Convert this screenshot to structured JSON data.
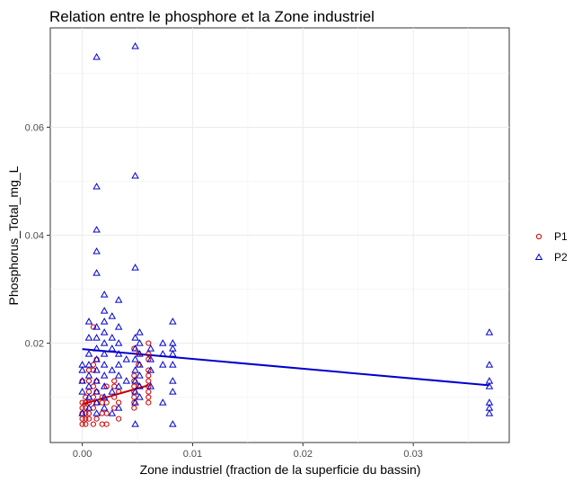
{
  "chart_data": {
    "type": "scatter",
    "title": "Relation entre le phosphore et la Zone industriel",
    "xlabel": "Zone industriel (fraction de la superficie du bassin)",
    "ylabel": "Phosphorus_Total_mg_L",
    "xlim": [
      -0.0029,
      0.0387
    ],
    "ylim": [
      0.0016,
      0.0784
    ],
    "x_ticks": [
      0.0,
      0.01,
      0.02,
      0.03
    ],
    "x_tick_labels": [
      "0.00",
      "0.01",
      "0.02",
      "0.03"
    ],
    "y_ticks": [
      0.02,
      0.04,
      0.06
    ],
    "y_tick_labels": [
      "0.02",
      "0.04",
      "0.06"
    ],
    "grid": true,
    "legend_position": "right",
    "series": [
      {
        "name": "P1",
        "marker": "circle",
        "color": "#cc0000",
        "points": [
          [
            0.0,
            0.005
          ],
          [
            0.0,
            0.006
          ],
          [
            0.0,
            0.007
          ],
          [
            0.0,
            0.008
          ],
          [
            0.0,
            0.009
          ],
          [
            0.0,
            0.013
          ],
          [
            0.0003,
            0.005
          ],
          [
            0.0003,
            0.006
          ],
          [
            0.0003,
            0.007
          ],
          [
            0.0003,
            0.008
          ],
          [
            0.0003,
            0.009
          ],
          [
            0.0003,
            0.01
          ],
          [
            0.0006,
            0.006
          ],
          [
            0.0006,
            0.007
          ],
          [
            0.0006,
            0.009
          ],
          [
            0.0006,
            0.011
          ],
          [
            0.0006,
            0.013
          ],
          [
            0.0006,
            0.015
          ],
          [
            0.001,
            0.005
          ],
          [
            0.001,
            0.008
          ],
          [
            0.001,
            0.01
          ],
          [
            0.001,
            0.012
          ],
          [
            0.001,
            0.015
          ],
          [
            0.001,
            0.016
          ],
          [
            0.001,
            0.023
          ],
          [
            0.0013,
            0.006
          ],
          [
            0.0013,
            0.009
          ],
          [
            0.0013,
            0.011
          ],
          [
            0.0013,
            0.013
          ],
          [
            0.0013,
            0.017
          ],
          [
            0.0018,
            0.005
          ],
          [
            0.0018,
            0.007
          ],
          [
            0.0018,
            0.009
          ],
          [
            0.0018,
            0.01
          ],
          [
            0.0022,
            0.005
          ],
          [
            0.0022,
            0.007
          ],
          [
            0.0022,
            0.009
          ],
          [
            0.0022,
            0.012
          ],
          [
            0.0029,
            0.008
          ],
          [
            0.0029,
            0.01
          ],
          [
            0.0029,
            0.012
          ],
          [
            0.0029,
            0.013
          ],
          [
            0.0033,
            0.006
          ],
          [
            0.0033,
            0.009
          ],
          [
            0.0033,
            0.011
          ],
          [
            0.0047,
            0.008
          ],
          [
            0.0047,
            0.009
          ],
          [
            0.0047,
            0.01
          ],
          [
            0.0047,
            0.011
          ],
          [
            0.0047,
            0.012
          ],
          [
            0.0047,
            0.013
          ],
          [
            0.0047,
            0.014
          ],
          [
            0.0047,
            0.019
          ],
          [
            0.0051,
            0.012
          ],
          [
            0.0051,
            0.016
          ],
          [
            0.0051,
            0.018
          ],
          [
            0.006,
            0.009
          ],
          [
            0.006,
            0.01
          ],
          [
            0.006,
            0.011
          ],
          [
            0.006,
            0.012
          ],
          [
            0.006,
            0.013
          ],
          [
            0.006,
            0.014
          ],
          [
            0.006,
            0.015
          ],
          [
            0.006,
            0.017
          ],
          [
            0.006,
            0.018
          ],
          [
            0.006,
            0.02
          ]
        ],
        "trend": [
          [
            0.0,
            0.0087
          ],
          [
            0.006,
            0.0122
          ]
        ]
      },
      {
        "name": "P2",
        "marker": "triangle",
        "color": "#0000cc",
        "points": [
          [
            0.0,
            0.007
          ],
          [
            0.0,
            0.011
          ],
          [
            0.0,
            0.013
          ],
          [
            0.0,
            0.015
          ],
          [
            0.0,
            0.016
          ],
          [
            0.0006,
            0.008
          ],
          [
            0.0006,
            0.01
          ],
          [
            0.0006,
            0.012
          ],
          [
            0.0006,
            0.014
          ],
          [
            0.0006,
            0.016
          ],
          [
            0.0006,
            0.018
          ],
          [
            0.0006,
            0.021
          ],
          [
            0.0006,
            0.024
          ],
          [
            0.0013,
            0.007
          ],
          [
            0.0013,
            0.009
          ],
          [
            0.0013,
            0.011
          ],
          [
            0.0013,
            0.013
          ],
          [
            0.0013,
            0.015
          ],
          [
            0.0013,
            0.017
          ],
          [
            0.0013,
            0.019
          ],
          [
            0.0013,
            0.021
          ],
          [
            0.0013,
            0.023
          ],
          [
            0.0013,
            0.033
          ],
          [
            0.0013,
            0.037
          ],
          [
            0.0013,
            0.041
          ],
          [
            0.0013,
            0.049
          ],
          [
            0.0013,
            0.073
          ],
          [
            0.002,
            0.008
          ],
          [
            0.002,
            0.01
          ],
          [
            0.002,
            0.012
          ],
          [
            0.002,
            0.014
          ],
          [
            0.002,
            0.016
          ],
          [
            0.002,
            0.018
          ],
          [
            0.002,
            0.02
          ],
          [
            0.002,
            0.022
          ],
          [
            0.002,
            0.024
          ],
          [
            0.002,
            0.026
          ],
          [
            0.002,
            0.029
          ],
          [
            0.0027,
            0.007
          ],
          [
            0.0027,
            0.011
          ],
          [
            0.0027,
            0.015
          ],
          [
            0.0027,
            0.019
          ],
          [
            0.0027,
            0.021
          ],
          [
            0.0027,
            0.025
          ],
          [
            0.0033,
            0.008
          ],
          [
            0.0033,
            0.012
          ],
          [
            0.0033,
            0.014
          ],
          [
            0.0033,
            0.016
          ],
          [
            0.0033,
            0.018
          ],
          [
            0.0033,
            0.02
          ],
          [
            0.0033,
            0.023
          ],
          [
            0.0033,
            0.028
          ],
          [
            0.004,
            0.013
          ],
          [
            0.004,
            0.017
          ],
          [
            0.0048,
            0.005
          ],
          [
            0.0048,
            0.009
          ],
          [
            0.0048,
            0.011
          ],
          [
            0.0048,
            0.013
          ],
          [
            0.0048,
            0.015
          ],
          [
            0.0048,
            0.017
          ],
          [
            0.0048,
            0.019
          ],
          [
            0.0048,
            0.021
          ],
          [
            0.0048,
            0.034
          ],
          [
            0.0048,
            0.051
          ],
          [
            0.0048,
            0.075
          ],
          [
            0.0052,
            0.01
          ],
          [
            0.0052,
            0.012
          ],
          [
            0.0052,
            0.014
          ],
          [
            0.0052,
            0.016
          ],
          [
            0.0052,
            0.018
          ],
          [
            0.0052,
            0.02
          ],
          [
            0.0052,
            0.022
          ],
          [
            0.0062,
            0.012
          ],
          [
            0.0062,
            0.015
          ],
          [
            0.0062,
            0.017
          ],
          [
            0.0062,
            0.019
          ],
          [
            0.0073,
            0.009
          ],
          [
            0.0073,
            0.016
          ],
          [
            0.0073,
            0.018
          ],
          [
            0.0073,
            0.02
          ],
          [
            0.0082,
            0.005
          ],
          [
            0.0082,
            0.011
          ],
          [
            0.0082,
            0.013
          ],
          [
            0.0082,
            0.016
          ],
          [
            0.0082,
            0.018
          ],
          [
            0.0082,
            0.019
          ],
          [
            0.0082,
            0.02
          ],
          [
            0.0082,
            0.024
          ],
          [
            0.0369,
            0.007
          ],
          [
            0.0369,
            0.008
          ],
          [
            0.0369,
            0.009
          ],
          [
            0.0369,
            0.012
          ],
          [
            0.0369,
            0.013
          ],
          [
            0.0369,
            0.016
          ],
          [
            0.0369,
            0.022
          ]
        ],
        "trend": [
          [
            0.0,
            0.0189
          ],
          [
            0.0369,
            0.0122
          ]
        ]
      }
    ]
  }
}
